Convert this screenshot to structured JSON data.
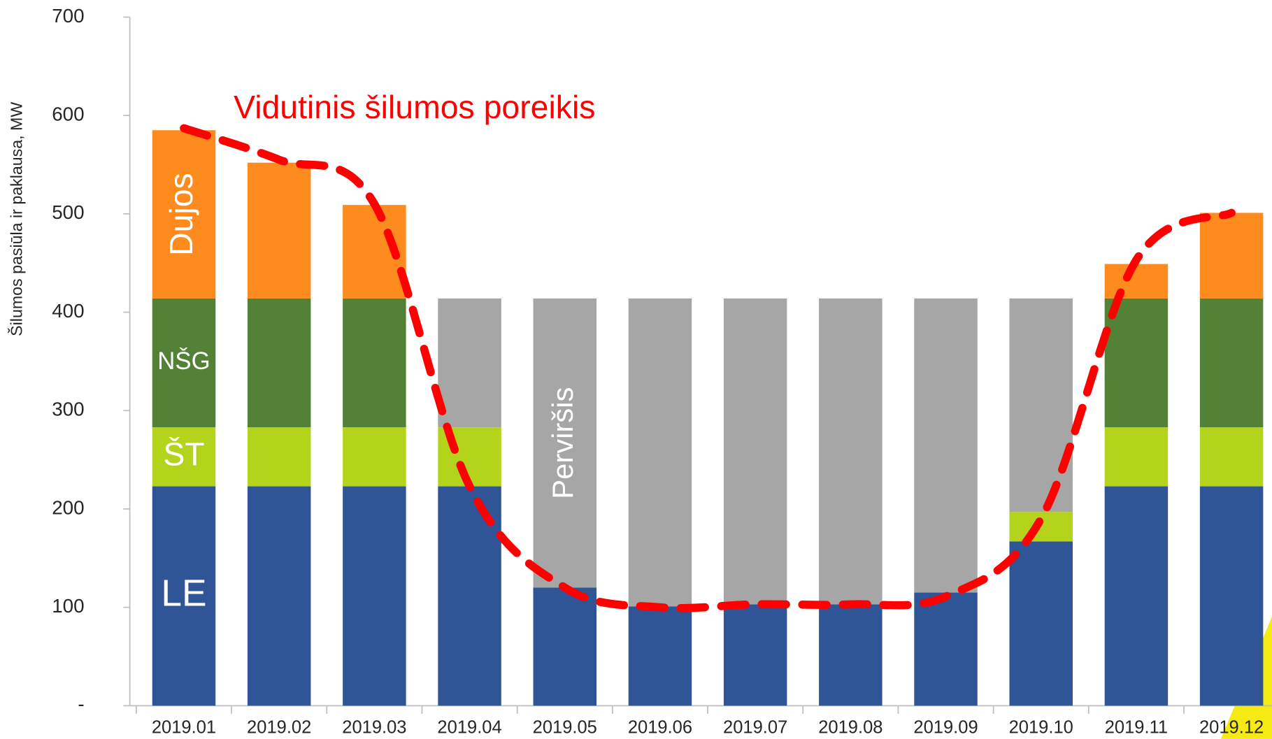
{
  "chart_data": {
    "type": "bar",
    "stacked": true,
    "y_label": "Šilumos pasiūla ir paklausa, MW",
    "categories": [
      "2019.01",
      "2019.02",
      "2019.03",
      "2019.04",
      "2019.05",
      "2019.06",
      "2019.07",
      "2019.08",
      "2019.09",
      "2019.10",
      "2019.11",
      "2019.12"
    ],
    "series": [
      {
        "name": "LE",
        "color": "#2f5597",
        "values": [
          223,
          223,
          223,
          223,
          120,
          101,
          103,
          103,
          115,
          167,
          223,
          223
        ]
      },
      {
        "name": "ŠT",
        "color": "#b4d41c",
        "values": [
          60,
          60,
          60,
          60,
          0,
          0,
          0,
          0,
          0,
          30,
          60,
          60
        ]
      },
      {
        "name": "NŠG",
        "color": "#538135",
        "values": [
          131,
          131,
          131,
          0,
          0,
          0,
          0,
          0,
          0,
          0,
          131,
          131
        ]
      },
      {
        "name": "Dujos",
        "color": "#fd8b1d",
        "values": [
          171,
          138,
          95,
          0,
          0,
          0,
          0,
          0,
          0,
          0,
          35,
          87
        ]
      },
      {
        "name": "Perviršis",
        "color": "#a6a6a6",
        "values": [
          0,
          0,
          0,
          131,
          294,
          313,
          311,
          311,
          299,
          217,
          0,
          0
        ]
      },
      {
        "name": "Vidutinis šilumos poreikis",
        "type": "line",
        "color": "#ff0000",
        "values": [
          587,
          555,
          510,
          223,
          120,
          100,
          103,
          103,
          111,
          190,
          453,
          501
        ]
      }
    ],
    "ylim": [
      0,
      700
    ],
    "yticks": [
      {
        "value": 0,
        "label": "-"
      },
      100,
      200,
      300,
      400,
      500,
      600,
      700
    ]
  }
}
